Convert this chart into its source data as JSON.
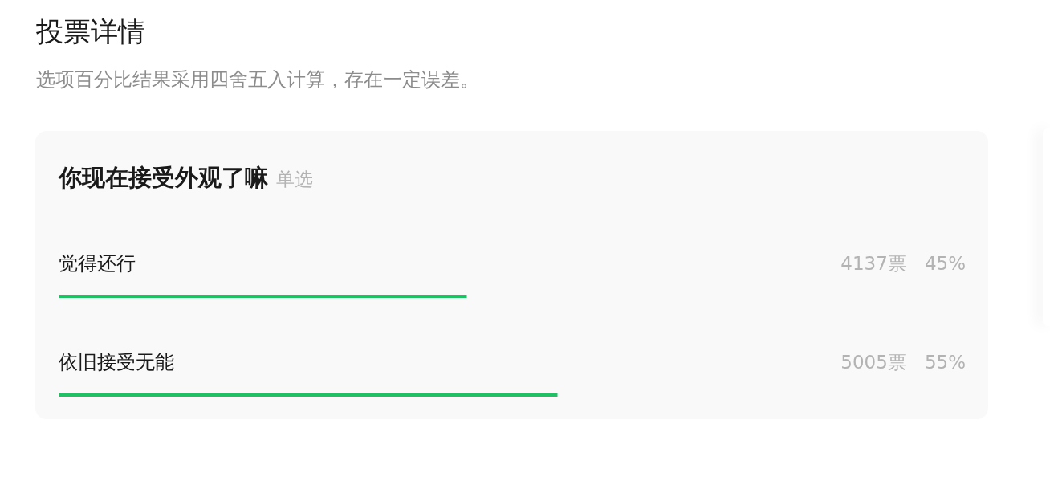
{
  "chart_data": {
    "type": "bar",
    "orientation": "horizontal",
    "title": "投票详情",
    "subtitle": "选项百分比结果采用四舍五入计算，存在一定误差。",
    "annotations": [
      "你现在接受外观了嘛",
      "单选"
    ],
    "categories": [
      "觉得还行",
      "依旧接受无能"
    ],
    "values": [
      45,
      55
    ],
    "value_labels": [
      "4137票 45%",
      "5005票 55%"
    ],
    "color": "#20c064",
    "tick_labels": "y"
  }
}
